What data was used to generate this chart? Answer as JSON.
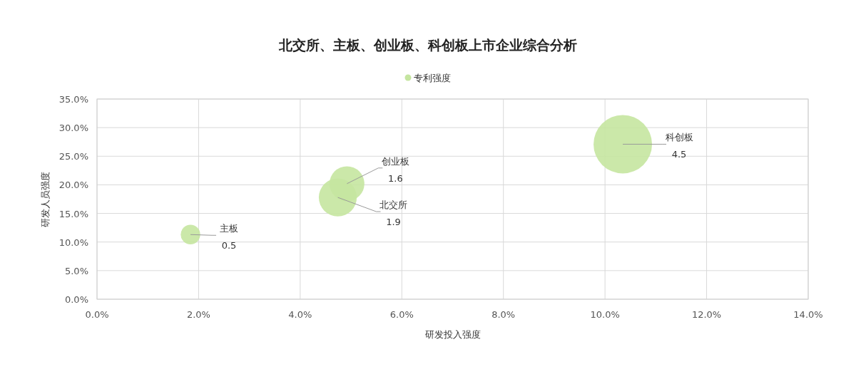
{
  "chart_data": {
    "type": "bubble",
    "title": "北交所、主板、创业板、科创板上市企业综合分析",
    "xlabel": "研发投入强度",
    "ylabel": "研发人员强度",
    "series": [
      {
        "name": "专利强度",
        "color": "#c5e5a0",
        "x": [
          1.84,
          4.74,
          4.92,
          10.35
        ],
        "values": [
          11.3,
          17.8,
          20.2,
          27.1
        ],
        "sizes": [
          0.5,
          1.9,
          1.6,
          4.5
        ],
        "value_labels": [
          "0.5",
          "1.9",
          "1.6",
          "4.5"
        ]
      }
    ],
    "annotations": [
      {
        "text": "主板",
        "x": 1.84,
        "y": 11.3
      },
      {
        "text": "北交所",
        "x": 4.74,
        "y": 17.8
      },
      {
        "text": "创业板",
        "x": 4.92,
        "y": 20.2
      },
      {
        "text": "科创板",
        "x": 10.35,
        "y": 27.1
      }
    ],
    "legend": "top",
    "grid": true,
    "xlim": [
      0,
      14
    ],
    "xticks": [
      {
        "value": 0,
        "label": "0.0%"
      },
      {
        "value": 2,
        "label": "2.0%"
      },
      {
        "value": 4,
        "label": "4.0%"
      },
      {
        "value": 6,
        "label": "6.0%"
      },
      {
        "value": 8,
        "label": "8.0%"
      },
      {
        "value": 10,
        "label": "10.0%"
      },
      {
        "value": 12,
        "label": "12.0%"
      },
      {
        "value": 14,
        "label": "14.0%"
      }
    ],
    "ylim": [
      0,
      35
    ],
    "yticks": [
      {
        "value": 0,
        "label": "0.0%"
      },
      {
        "value": 5,
        "label": "5.0%"
      },
      {
        "value": 10,
        "label": "10.0%"
      },
      {
        "value": 15,
        "label": "15.0%"
      },
      {
        "value": 20,
        "label": "20.0%"
      },
      {
        "value": 25,
        "label": "25.0%"
      },
      {
        "value": 30,
        "label": "30.0%"
      },
      {
        "value": 35,
        "label": "35.0%"
      }
    ]
  }
}
